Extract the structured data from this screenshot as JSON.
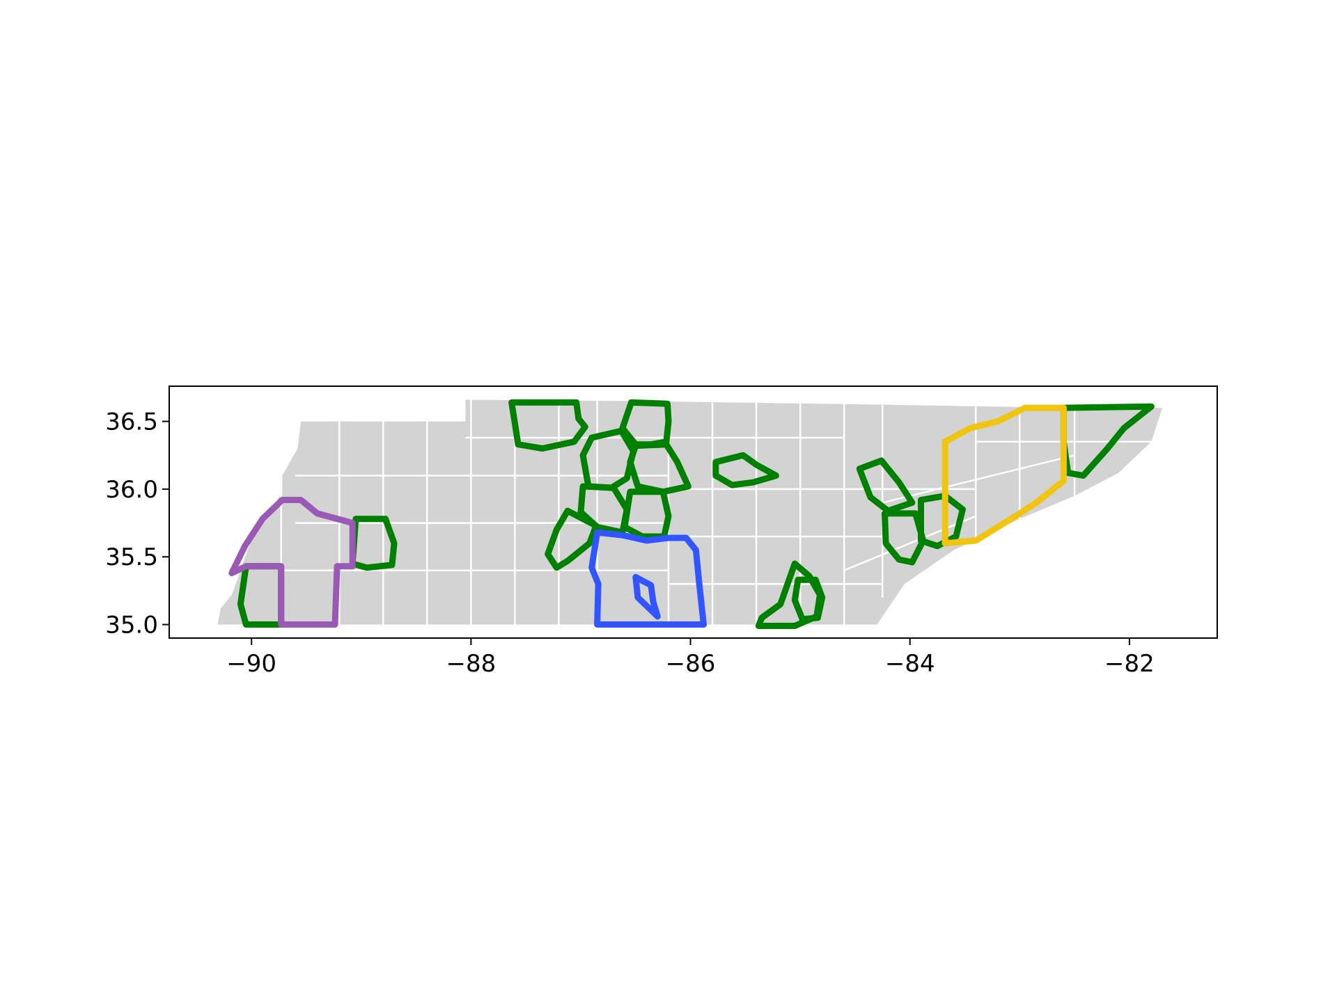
{
  "chart_data": {
    "type": "map",
    "region": "Tennessee counties",
    "xlim": [
      -90.75,
      -81.2
    ],
    "ylim": [
      34.9,
      36.76
    ],
    "xticks": [
      {
        "value": -90,
        "label": "−90"
      },
      {
        "value": -88,
        "label": "−88"
      },
      {
        "value": -86,
        "label": "−86"
      },
      {
        "value": -84,
        "label": "−84"
      },
      {
        "value": -82,
        "label": "−82"
      }
    ],
    "yticks": [
      {
        "value": 35.0,
        "label": "35.0"
      },
      {
        "value": 35.5,
        "label": "35.5"
      },
      {
        "value": 36.0,
        "label": "36.0"
      },
      {
        "value": 36.5,
        "label": "36.5"
      }
    ],
    "colors": {
      "state_fill": "#d3d3d3",
      "county_lines": "#ffffff",
      "green": "#008000",
      "purple": "#9b59b6",
      "blue": "#3355ff",
      "yellow": "#f1c40f"
    },
    "state_outline": [
      [
        -90.31,
        35.0
      ],
      [
        -90.28,
        35.12
      ],
      [
        -90.18,
        35.22
      ],
      [
        -90.12,
        35.35
      ],
      [
        -90.08,
        35.45
      ],
      [
        -90.02,
        35.58
      ],
      [
        -89.95,
        35.72
      ],
      [
        -89.82,
        35.85
      ],
      [
        -89.72,
        35.98
      ],
      [
        -89.72,
        36.1
      ],
      [
        -89.58,
        36.3
      ],
      [
        -89.55,
        36.5
      ],
      [
        -88.05,
        36.5
      ],
      [
        -88.05,
        36.66
      ],
      [
        -86.5,
        36.65
      ],
      [
        -84.0,
        36.62
      ],
      [
        -82.6,
        36.6
      ],
      [
        -81.7,
        36.6
      ],
      [
        -81.8,
        36.35
      ],
      [
        -82.1,
        36.12
      ],
      [
        -82.5,
        35.95
      ],
      [
        -83.0,
        35.78
      ],
      [
        -83.6,
        35.55
      ],
      [
        -84.05,
        35.3
      ],
      [
        -84.3,
        35.0
      ],
      [
        -90.31,
        35.0
      ]
    ],
    "county_lines": [
      [
        [
          -89.73,
          35.0
        ],
        [
          -89.73,
          36.47
        ]
      ],
      [
        [
          -89.2,
          35.0
        ],
        [
          -89.2,
          36.5
        ]
      ],
      [
        [
          -88.8,
          35.0
        ],
        [
          -88.8,
          36.5
        ]
      ],
      [
        [
          -88.4,
          35.0
        ],
        [
          -88.4,
          36.5
        ]
      ],
      [
        [
          -88.0,
          35.0
        ],
        [
          -88.0,
          36.66
        ]
      ],
      [
        [
          -87.6,
          35.0
        ],
        [
          -87.6,
          36.66
        ]
      ],
      [
        [
          -87.2,
          35.0
        ],
        [
          -87.2,
          36.66
        ]
      ],
      [
        [
          -86.85,
          35.0
        ],
        [
          -86.85,
          36.66
        ]
      ],
      [
        [
          -86.2,
          35.0
        ],
        [
          -86.2,
          36.65
        ]
      ],
      [
        [
          -85.8,
          35.0
        ],
        [
          -85.8,
          36.64
        ]
      ],
      [
        [
          -85.4,
          35.0
        ],
        [
          -85.4,
          36.64
        ]
      ],
      [
        [
          -85.0,
          35.0
        ],
        [
          -85.0,
          36.63
        ]
      ],
      [
        [
          -84.6,
          35.0
        ],
        [
          -84.6,
          36.63
        ]
      ],
      [
        [
          -84.25,
          35.2
        ],
        [
          -84.25,
          36.62
        ]
      ],
      [
        [
          -83.4,
          35.6
        ],
        [
          -83.4,
          36.61
        ]
      ],
      [
        [
          -83.0,
          35.75
        ],
        [
          -83.0,
          36.6
        ]
      ],
      [
        [
          -82.5,
          35.95
        ],
        [
          -82.5,
          36.6
        ]
      ],
      [
        [
          -89.73,
          35.4
        ],
        [
          -86.2,
          35.4
        ]
      ],
      [
        [
          -89.6,
          35.75
        ],
        [
          -86.2,
          35.75
        ]
      ],
      [
        [
          -89.6,
          36.1
        ],
        [
          -86.2,
          36.1
        ]
      ],
      [
        [
          -88.05,
          36.38
        ],
        [
          -84.6,
          36.38
        ]
      ],
      [
        [
          -86.2,
          35.3
        ],
        [
          -84.25,
          35.3
        ]
      ],
      [
        [
          -86.2,
          35.65
        ],
        [
          -84.25,
          35.65
        ]
      ],
      [
        [
          -86.2,
          36.0
        ],
        [
          -83.4,
          36.0
        ]
      ],
      [
        [
          -84.25,
          35.9
        ],
        [
          -82.5,
          36.25
        ]
      ],
      [
        [
          -84.6,
          35.4
        ],
        [
          -83.4,
          35.8
        ]
      ],
      [
        [
          -83.4,
          36.35
        ],
        [
          -81.8,
          36.35
        ]
      ]
    ],
    "outlines": [
      {
        "color": "green",
        "points": [
          [
            -87.63,
            36.64
          ],
          [
            -87.04,
            36.64
          ],
          [
            -87.02,
            36.52
          ],
          [
            -86.96,
            36.46
          ],
          [
            -87.06,
            36.35
          ],
          [
            -87.35,
            36.3
          ],
          [
            -87.57,
            36.33
          ],
          [
            -87.63,
            36.64
          ]
        ]
      },
      {
        "color": "green",
        "points": [
          [
            -86.54,
            36.64
          ],
          [
            -86.21,
            36.63
          ],
          [
            -86.2,
            36.5
          ],
          [
            -86.22,
            36.35
          ],
          [
            -86.36,
            36.33
          ],
          [
            -86.5,
            36.33
          ],
          [
            -86.62,
            36.45
          ],
          [
            -86.54,
            36.64
          ]
        ]
      },
      {
        "color": "green",
        "points": [
          [
            -86.63,
            36.43
          ],
          [
            -86.9,
            36.38
          ],
          [
            -86.98,
            36.25
          ],
          [
            -86.93,
            36.02
          ],
          [
            -86.72,
            36.01
          ],
          [
            -86.58,
            36.08
          ],
          [
            -86.52,
            36.28
          ],
          [
            -86.63,
            36.43
          ]
        ]
      },
      {
        "color": "green",
        "points": [
          [
            -86.5,
            36.32
          ],
          [
            -86.22,
            36.33
          ],
          [
            -86.12,
            36.2
          ],
          [
            -86.02,
            36.02
          ],
          [
            -86.25,
            35.98
          ],
          [
            -86.48,
            36.02
          ],
          [
            -86.55,
            36.2
          ],
          [
            -86.5,
            36.32
          ]
        ]
      },
      {
        "color": "green",
        "points": [
          [
            -86.98,
            36.02
          ],
          [
            -86.7,
            36.01
          ],
          [
            -86.58,
            35.85
          ],
          [
            -86.62,
            35.68
          ],
          [
            -86.85,
            35.72
          ],
          [
            -87.0,
            35.83
          ],
          [
            -86.98,
            36.02
          ]
        ]
      },
      {
        "color": "green",
        "points": [
          [
            -86.55,
            35.98
          ],
          [
            -86.25,
            35.98
          ],
          [
            -86.2,
            35.8
          ],
          [
            -86.24,
            35.65
          ],
          [
            -86.44,
            35.65
          ],
          [
            -86.6,
            35.72
          ],
          [
            -86.55,
            35.98
          ]
        ]
      },
      {
        "color": "green",
        "points": [
          [
            -87.12,
            35.84
          ],
          [
            -86.86,
            35.73
          ],
          [
            -86.92,
            35.6
          ],
          [
            -87.12,
            35.47
          ],
          [
            -87.22,
            35.42
          ],
          [
            -87.3,
            35.52
          ],
          [
            -87.22,
            35.7
          ],
          [
            -87.12,
            35.84
          ]
        ]
      },
      {
        "color": "green",
        "points": [
          [
            -85.77,
            36.2
          ],
          [
            -85.52,
            36.25
          ],
          [
            -85.4,
            36.18
          ],
          [
            -85.22,
            36.1
          ],
          [
            -85.43,
            36.05
          ],
          [
            -85.62,
            36.03
          ],
          [
            -85.77,
            36.1
          ],
          [
            -85.77,
            36.2
          ]
        ]
      },
      {
        "color": "green",
        "points": [
          [
            -85.35,
            35.05
          ],
          [
            -85.18,
            35.15
          ],
          [
            -85.05,
            35.45
          ],
          [
            -84.92,
            35.36
          ],
          [
            -84.82,
            35.22
          ],
          [
            -84.85,
            35.06
          ],
          [
            -85.05,
            34.99
          ],
          [
            -85.38,
            34.99
          ],
          [
            -85.35,
            35.05
          ]
        ]
      },
      {
        "color": "green",
        "points": [
          [
            -85.02,
            35.33
          ],
          [
            -84.86,
            35.33
          ],
          [
            -84.8,
            35.2
          ],
          [
            -84.84,
            35.05
          ],
          [
            -84.98,
            35.04
          ],
          [
            -85.05,
            35.18
          ],
          [
            -85.02,
            35.33
          ]
        ]
      },
      {
        "color": "green",
        "points": [
          [
            -84.46,
            36.15
          ],
          [
            -84.26,
            36.21
          ],
          [
            -84.1,
            36.05
          ],
          [
            -83.98,
            35.9
          ],
          [
            -84.2,
            35.84
          ],
          [
            -84.36,
            35.94
          ],
          [
            -84.46,
            36.15
          ]
        ]
      },
      {
        "color": "green",
        "points": [
          [
            -84.23,
            35.82
          ],
          [
            -83.95,
            35.82
          ],
          [
            -83.88,
            35.62
          ],
          [
            -83.98,
            35.46
          ],
          [
            -84.1,
            35.48
          ],
          [
            -84.22,
            35.6
          ],
          [
            -84.23,
            35.82
          ]
        ]
      },
      {
        "color": "green",
        "points": [
          [
            -83.9,
            35.92
          ],
          [
            -83.68,
            35.95
          ],
          [
            -83.52,
            35.85
          ],
          [
            -83.58,
            35.65
          ],
          [
            -83.75,
            35.58
          ],
          [
            -83.9,
            35.62
          ],
          [
            -83.9,
            35.92
          ]
        ]
      },
      {
        "color": "green",
        "points": [
          [
            -82.6,
            36.6
          ],
          [
            -81.8,
            36.61
          ],
          [
            -82.05,
            36.45
          ],
          [
            -82.2,
            36.3
          ],
          [
            -82.42,
            36.1
          ],
          [
            -82.56,
            36.12
          ],
          [
            -82.6,
            36.35
          ],
          [
            -82.6,
            36.6
          ]
        ]
      },
      {
        "color": "green",
        "points": [
          [
            -89.05,
            35.78
          ],
          [
            -88.78,
            35.78
          ],
          [
            -88.7,
            35.6
          ],
          [
            -88.72,
            35.44
          ],
          [
            -88.95,
            35.42
          ],
          [
            -89.08,
            35.45
          ],
          [
            -89.05,
            35.78
          ]
        ]
      },
      {
        "color": "green",
        "points": [
          [
            -90.05,
            35.43
          ],
          [
            -89.73,
            35.43
          ],
          [
            -89.73,
            35.0
          ],
          [
            -90.05,
            35.0
          ],
          [
            -90.1,
            35.15
          ],
          [
            -90.05,
            35.43
          ]
        ]
      },
      {
        "color": "purple",
        "points": [
          [
            -90.18,
            35.38
          ],
          [
            -90.06,
            35.58
          ],
          [
            -89.9,
            35.78
          ],
          [
            -89.72,
            35.92
          ],
          [
            -89.55,
            35.92
          ],
          [
            -89.4,
            35.82
          ],
          [
            -89.08,
            35.75
          ],
          [
            -89.08,
            35.43
          ],
          [
            -89.22,
            35.43
          ],
          [
            -89.24,
            35.0
          ],
          [
            -89.73,
            35.0
          ],
          [
            -89.73,
            35.43
          ],
          [
            -90.05,
            35.43
          ],
          [
            -90.18,
            35.38
          ]
        ]
      },
      {
        "color": "blue",
        "points": [
          [
            -86.85,
            35.68
          ],
          [
            -86.62,
            35.66
          ],
          [
            -86.4,
            35.62
          ],
          [
            -86.2,
            35.64
          ],
          [
            -86.04,
            35.64
          ],
          [
            -85.95,
            35.55
          ],
          [
            -85.92,
            35.3
          ],
          [
            -85.88,
            35.0
          ],
          [
            -86.85,
            35.0
          ],
          [
            -86.84,
            35.3
          ],
          [
            -86.9,
            35.42
          ],
          [
            -86.85,
            35.68
          ]
        ]
      },
      {
        "color": "blue",
        "points": [
          [
            -86.5,
            35.35
          ],
          [
            -86.36,
            35.29
          ],
          [
            -86.34,
            35.17
          ],
          [
            -86.3,
            35.06
          ],
          [
            -86.48,
            35.2
          ],
          [
            -86.5,
            35.35
          ]
        ]
      },
      {
        "color": "yellow",
        "points": [
          [
            -83.68,
            36.35
          ],
          [
            -83.45,
            36.45
          ],
          [
            -83.2,
            36.5
          ],
          [
            -82.95,
            36.6
          ],
          [
            -82.6,
            36.6
          ],
          [
            -82.6,
            36.3
          ],
          [
            -82.6,
            36.06
          ],
          [
            -82.85,
            35.9
          ],
          [
            -83.0,
            35.82
          ],
          [
            -83.2,
            35.72
          ],
          [
            -83.4,
            35.62
          ],
          [
            -83.68,
            35.6
          ],
          [
            -83.68,
            36.0
          ],
          [
            -83.68,
            36.35
          ]
        ]
      }
    ]
  }
}
